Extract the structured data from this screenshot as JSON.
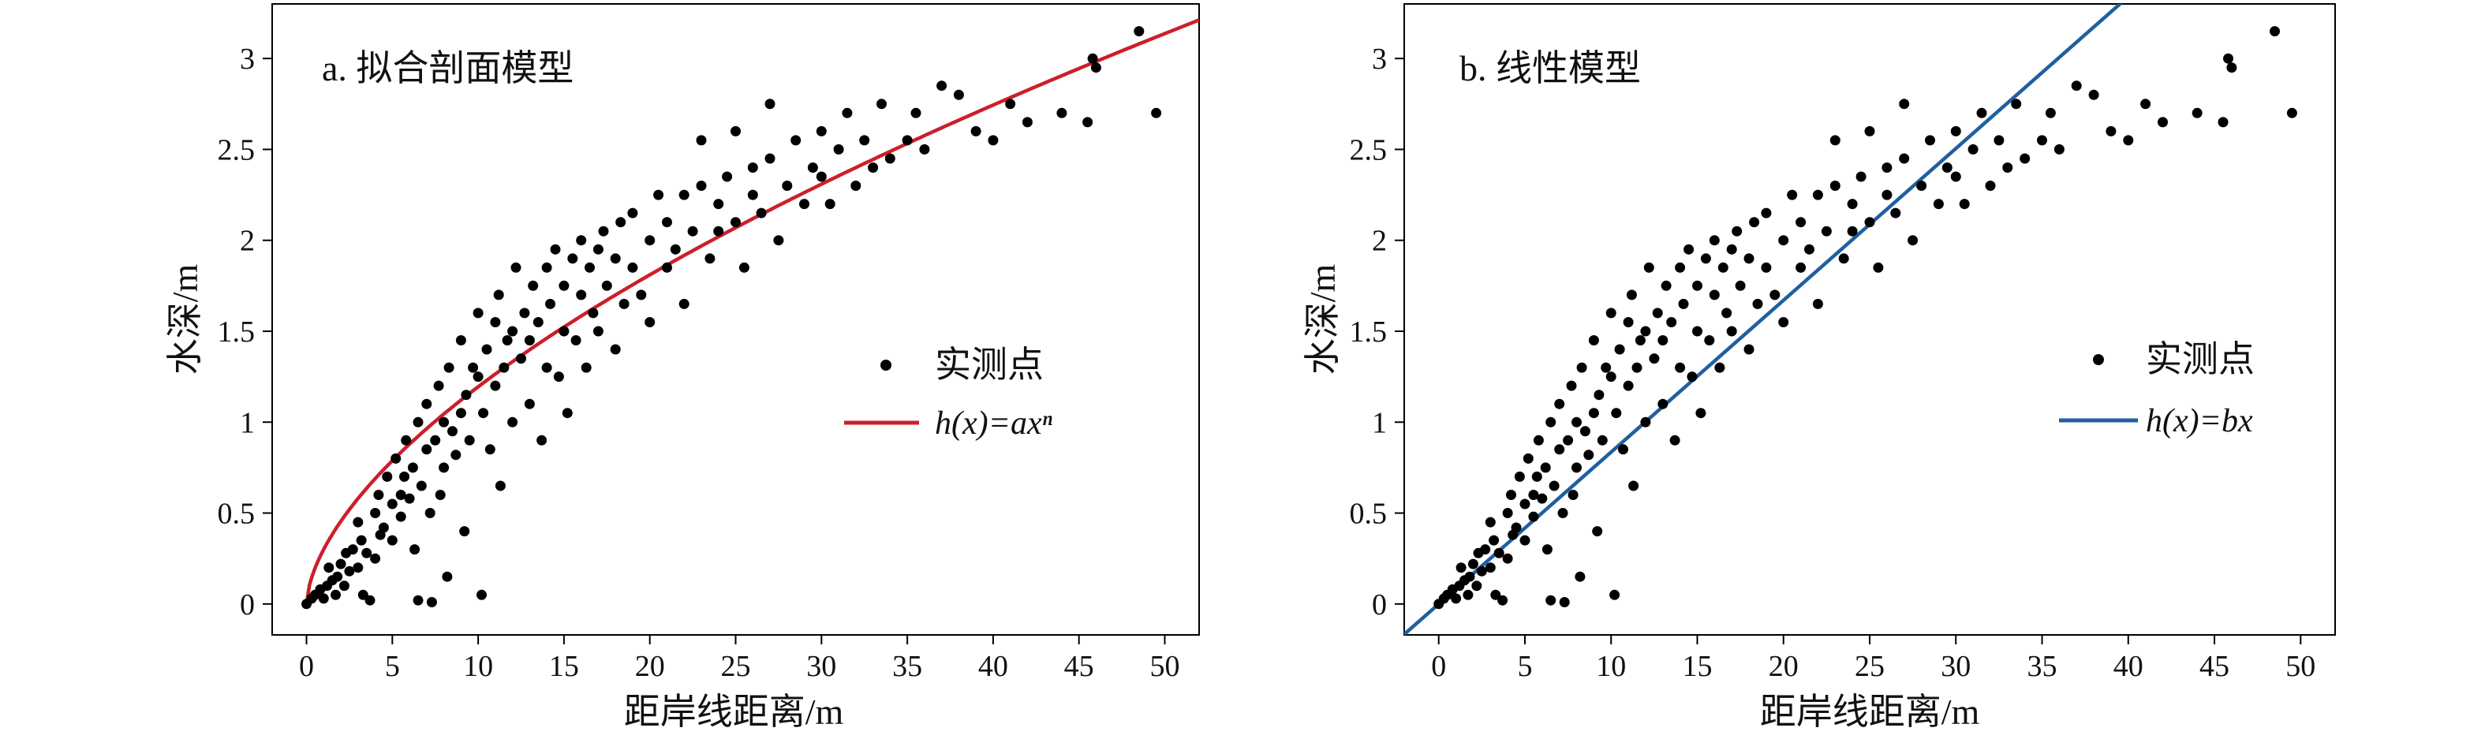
{
  "panels": [
    {
      "title": "a. 拟合剖面模型",
      "xlabel": "距岸线距离/m",
      "ylabel": "水深/m",
      "legend": {
        "points_label": "实测点",
        "line_label": "h(x)=axⁿ"
      },
      "line_color": "#cc1f2a"
    },
    {
      "title": "b. 线性模型",
      "xlabel": "距岸线距离/m",
      "ylabel": "水深/m",
      "legend": {
        "points_label": "实测点",
        "line_label": "h(x)=bx"
      },
      "line_color": "#1f5fa0"
    }
  ],
  "chart_data": [
    {
      "type": "scatter",
      "title": "a. 拟合剖面模型",
      "xlabel": "距岸线距离/m",
      "ylabel": "水深/m",
      "xlim": [
        -2,
        52
      ],
      "ylim": [
        -0.17,
        3.3
      ],
      "xticks": [
        0,
        5,
        10,
        15,
        20,
        25,
        30,
        35,
        40,
        45,
        50
      ],
      "yticks": [
        0,
        0.5,
        1,
        1.5,
        2,
        2.5,
        3
      ],
      "grid": false,
      "legend_position": "right",
      "series": [
        {
          "name": "实测点",
          "kind": "points"
        },
        {
          "name": "h(x)=axⁿ",
          "kind": "curve",
          "a": 0.3,
          "n": 0.6,
          "color": "#cc1f2a"
        }
      ]
    },
    {
      "type": "scatter",
      "title": "b. 线性模型",
      "xlabel": "距岸线距离/m",
      "ylabel": "水深/m",
      "xlim": [
        -2,
        52
      ],
      "ylim": [
        -0.17,
        3.3
      ],
      "xticks": [
        0,
        5,
        10,
        15,
        20,
        25,
        30,
        35,
        40,
        45,
        50
      ],
      "yticks": [
        0,
        0.5,
        1,
        1.5,
        2,
        2.5,
        3
      ],
      "grid": false,
      "legend_position": "right",
      "series": [
        {
          "name": "实测点",
          "kind": "points"
        },
        {
          "name": "h(x)=bx",
          "kind": "line",
          "b": 0.0835,
          "color": "#1f5fa0"
        }
      ]
    }
  ],
  "points": [
    [
      0,
      0
    ],
    [
      0.3,
      0.03
    ],
    [
      0.5,
      0.05
    ],
    [
      0.8,
      0.08
    ],
    [
      1,
      0.03
    ],
    [
      1.2,
      0.1
    ],
    [
      1.3,
      0.2
    ],
    [
      1.5,
      0.13
    ],
    [
      1.7,
      0.05
    ],
    [
      1.8,
      0.15
    ],
    [
      2,
      0.22
    ],
    [
      2.2,
      0.1
    ],
    [
      2.3,
      0.28
    ],
    [
      2.5,
      0.18
    ],
    [
      2.7,
      0.3
    ],
    [
      3,
      0.2
    ],
    [
      3,
      0.45
    ],
    [
      3.2,
      0.35
    ],
    [
      3.3,
      0.05
    ],
    [
      3.5,
      0.28
    ],
    [
      3.7,
      0.02
    ],
    [
      4,
      0.5
    ],
    [
      4,
      0.25
    ],
    [
      4.2,
      0.6
    ],
    [
      4.3,
      0.38
    ],
    [
      4.5,
      0.42
    ],
    [
      4.7,
      0.7
    ],
    [
      5,
      0.55
    ],
    [
      5,
      0.35
    ],
    [
      5.2,
      0.8
    ],
    [
      5.5,
      0.6
    ],
    [
      5.5,
      0.48
    ],
    [
      5.7,
      0.7
    ],
    [
      5.8,
      0.9
    ],
    [
      6,
      0.58
    ],
    [
      6.2,
      0.75
    ],
    [
      6.3,
      0.3
    ],
    [
      6.5,
      0.02
    ],
    [
      6.5,
      1
    ],
    [
      6.7,
      0.65
    ],
    [
      7,
      0.85
    ],
    [
      7,
      1.1
    ],
    [
      7.2,
      0.5
    ],
    [
      7.3,
      0.01
    ],
    [
      7.5,
      0.9
    ],
    [
      7.7,
      1.2
    ],
    [
      7.8,
      0.6
    ],
    [
      8,
      0.75
    ],
    [
      8,
      1
    ],
    [
      8.2,
      0.15
    ],
    [
      8.3,
      1.3
    ],
    [
      8.5,
      0.95
    ],
    [
      8.7,
      0.82
    ],
    [
      9,
      1.05
    ],
    [
      9,
      1.45
    ],
    [
      9.2,
      0.4
    ],
    [
      9.3,
      1.15
    ],
    [
      9.5,
      0.9
    ],
    [
      9.7,
      1.3
    ],
    [
      10,
      1.25
    ],
    [
      10,
      1.6
    ],
    [
      10.2,
      0.05
    ],
    [
      10.3,
      1.05
    ],
    [
      10.5,
      1.4
    ],
    [
      10.7,
      0.85
    ],
    [
      11,
      1.2
    ],
    [
      11,
      1.55
    ],
    [
      11.2,
      1.7
    ],
    [
      11.3,
      0.65
    ],
    [
      11.5,
      1.3
    ],
    [
      11.7,
      1.45
    ],
    [
      12,
      1
    ],
    [
      12,
      1.5
    ],
    [
      12.2,
      1.85
    ],
    [
      12.5,
      1.35
    ],
    [
      12.7,
      1.6
    ],
    [
      13,
      1.1
    ],
    [
      13,
      1.45
    ],
    [
      13.2,
      1.75
    ],
    [
      13.5,
      1.55
    ],
    [
      13.7,
      0.9
    ],
    [
      14,
      1.3
    ],
    [
      14,
      1.85
    ],
    [
      14.2,
      1.65
    ],
    [
      14.5,
      1.95
    ],
    [
      14.7,
      1.25
    ],
    [
      15,
      1.5
    ],
    [
      15,
      1.75
    ],
    [
      15.2,
      1.05
    ],
    [
      15.5,
      1.9
    ],
    [
      15.7,
      1.45
    ],
    [
      16,
      1.7
    ],
    [
      16,
      2
    ],
    [
      16.3,
      1.3
    ],
    [
      16.5,
      1.85
    ],
    [
      16.7,
      1.6
    ],
    [
      17,
      1.95
    ],
    [
      17,
      1.5
    ],
    [
      17.3,
      2.05
    ],
    [
      17.5,
      1.75
    ],
    [
      18,
      1.4
    ],
    [
      18,
      1.9
    ],
    [
      18.3,
      2.1
    ],
    [
      18.5,
      1.65
    ],
    [
      19,
      1.85
    ],
    [
      19,
      2.15
    ],
    [
      19.5,
      1.7
    ],
    [
      20,
      2
    ],
    [
      20,
      1.55
    ],
    [
      20.5,
      2.25
    ],
    [
      21,
      1.85
    ],
    [
      21,
      2.1
    ],
    [
      21.5,
      1.95
    ],
    [
      22,
      2.25
    ],
    [
      22,
      1.65
    ],
    [
      22.5,
      2.05
    ],
    [
      23,
      2.3
    ],
    [
      23,
      2.55
    ],
    [
      23.5,
      1.9
    ],
    [
      24,
      2.2
    ],
    [
      24,
      2.05
    ],
    [
      24.5,
      2.35
    ],
    [
      25,
      2.1
    ],
    [
      25,
      2.6
    ],
    [
      25.5,
      1.85
    ],
    [
      26,
      2.25
    ],
    [
      26,
      2.4
    ],
    [
      26.5,
      2.15
    ],
    [
      27,
      2.45
    ],
    [
      27,
      2.75
    ],
    [
      27.5,
      2
    ],
    [
      28,
      2.3
    ],
    [
      28.5,
      2.55
    ],
    [
      29,
      2.2
    ],
    [
      29.5,
      2.4
    ],
    [
      30,
      2.35
    ],
    [
      30,
      2.6
    ],
    [
      30.5,
      2.2
    ],
    [
      31,
      2.5
    ],
    [
      31.5,
      2.7
    ],
    [
      32,
      2.3
    ],
    [
      32.5,
      2.55
    ],
    [
      33,
      2.4
    ],
    [
      33.5,
      2.75
    ],
    [
      34,
      2.45
    ],
    [
      35,
      2.55
    ],
    [
      35.5,
      2.7
    ],
    [
      36,
      2.5
    ],
    [
      37,
      2.85
    ],
    [
      38,
      2.8
    ],
    [
      39,
      2.6
    ],
    [
      40,
      2.55
    ],
    [
      41,
      2.75
    ],
    [
      42,
      2.65
    ],
    [
      44,
      2.7
    ],
    [
      45.5,
      2.65
    ],
    [
      45.8,
      3
    ],
    [
      46,
      2.95
    ],
    [
      48.5,
      3.15
    ],
    [
      49.5,
      2.7
    ]
  ]
}
